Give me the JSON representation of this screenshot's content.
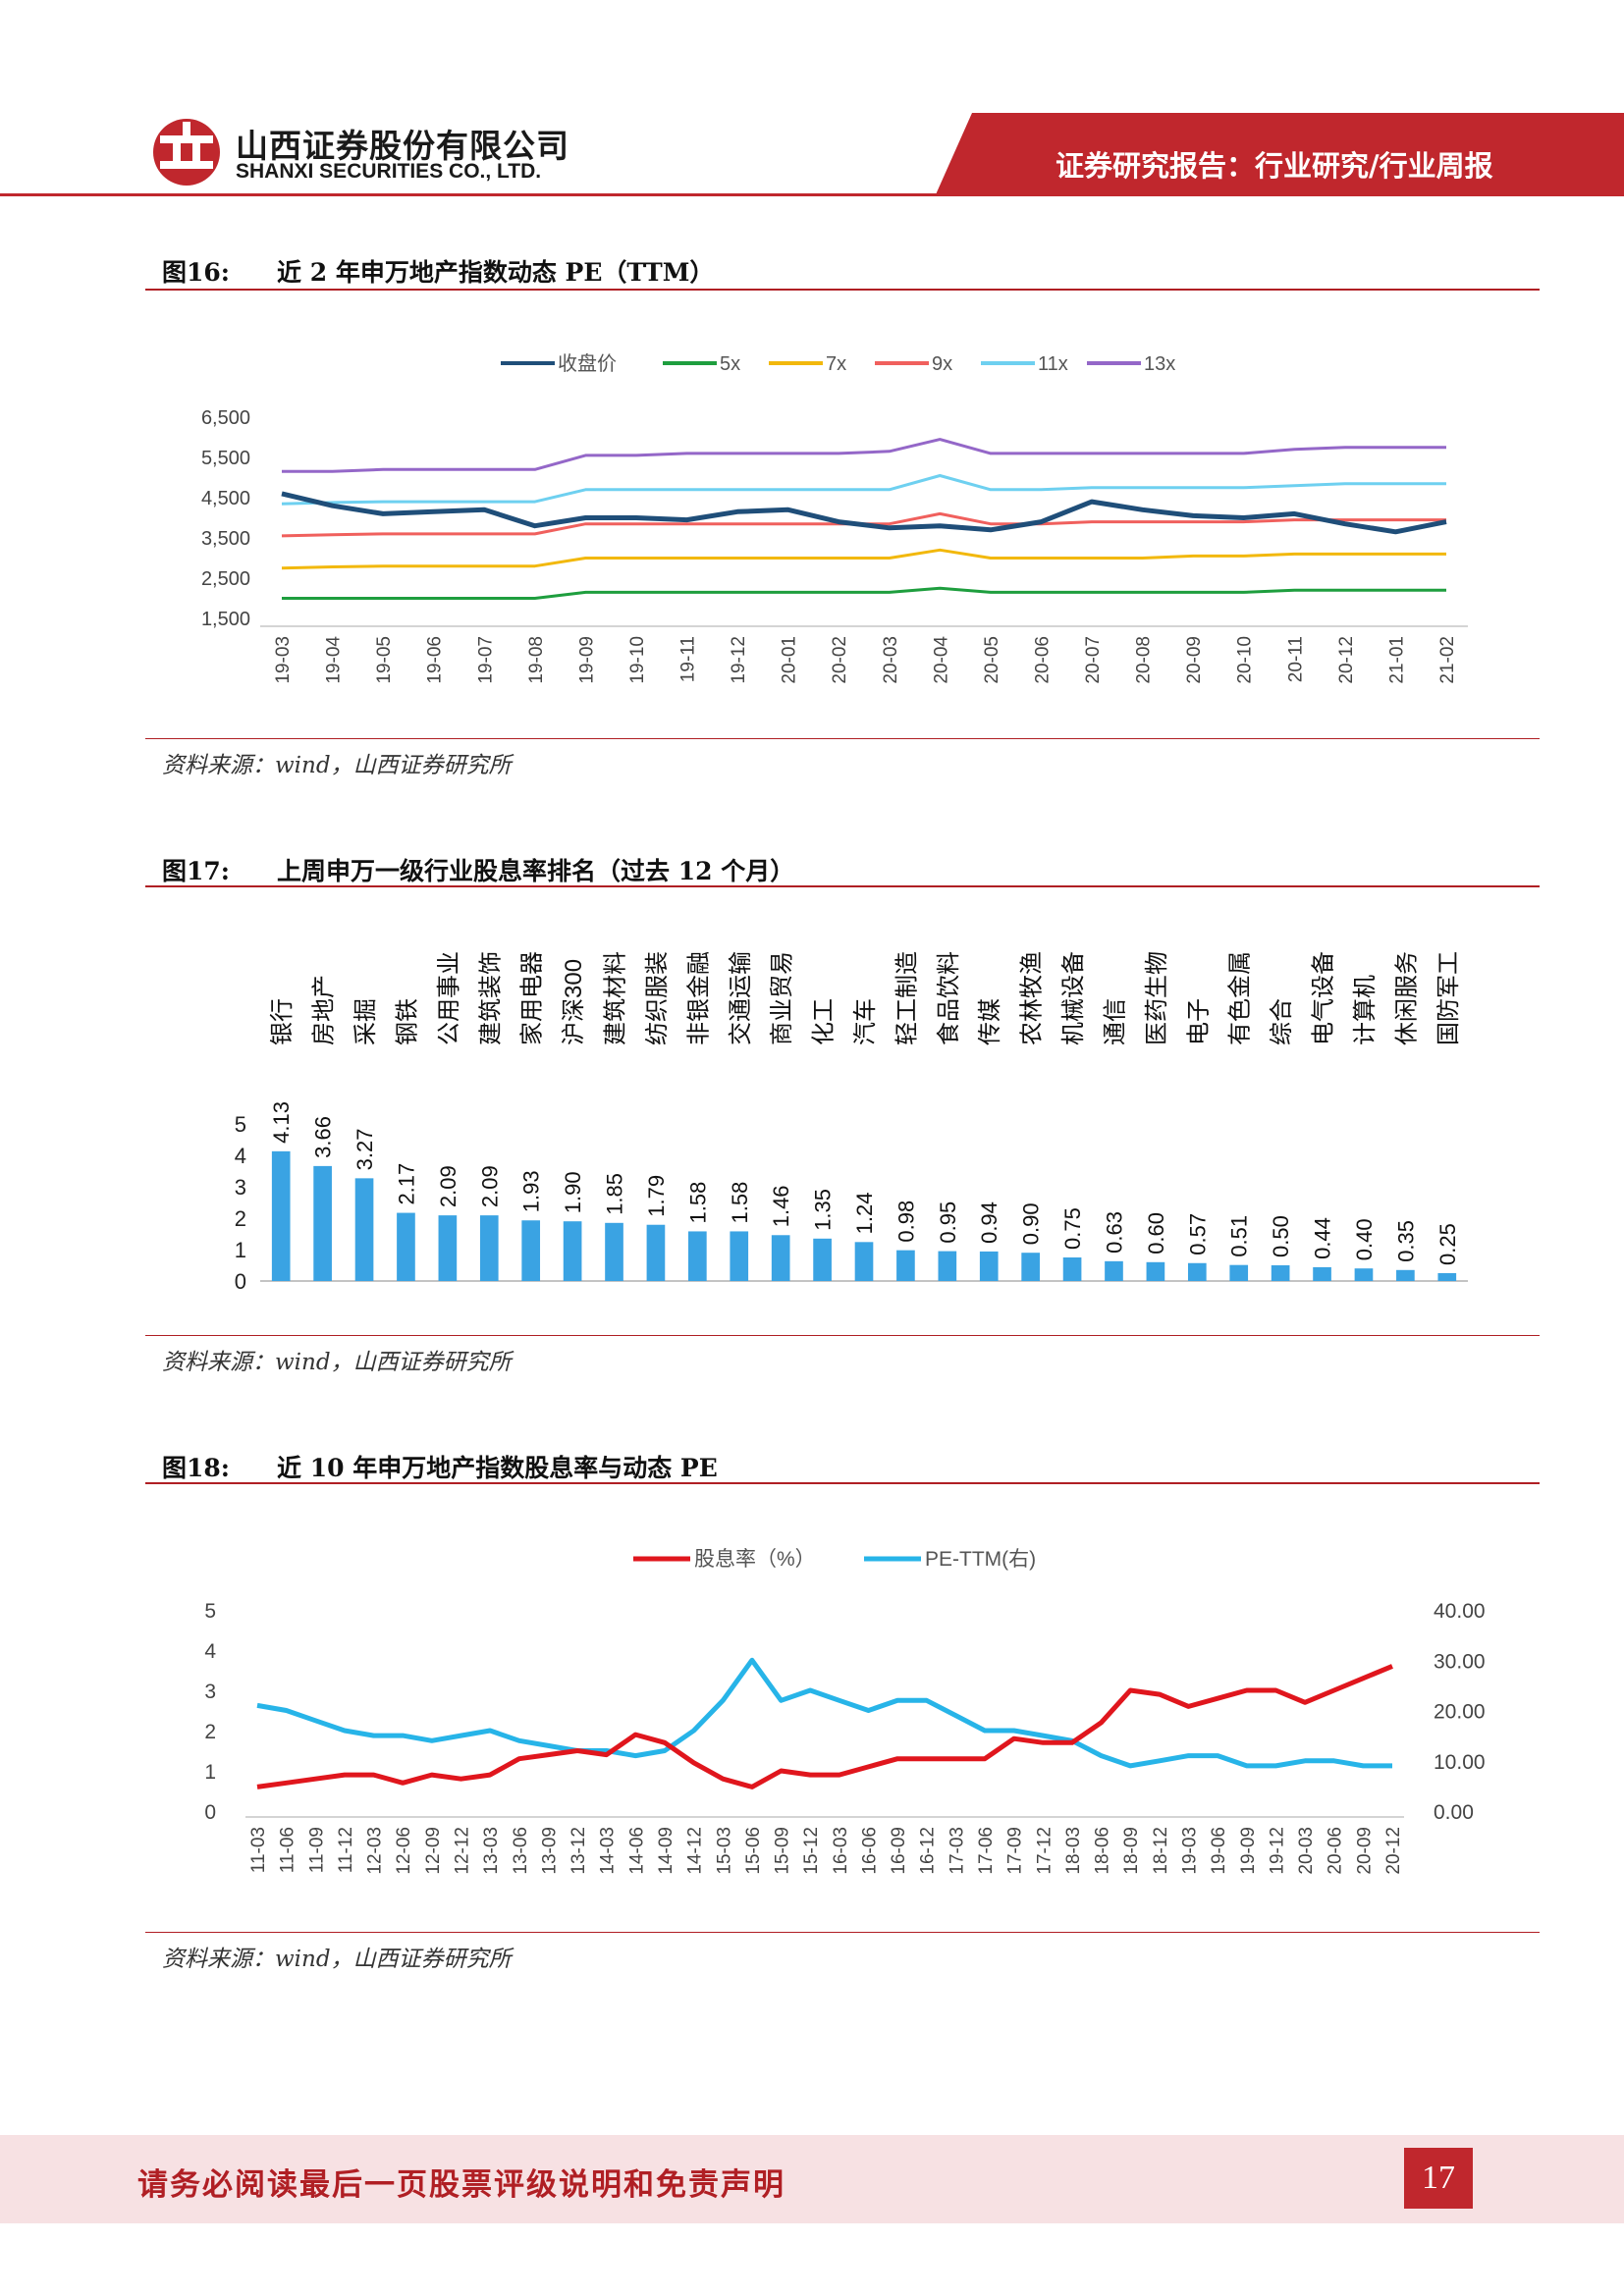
{
  "header": {
    "company_cn": "山西证券股份有限公司",
    "company_en": "SHANXI SECURITIES CO., LTD.",
    "report_type": "证券研究报告：行业研究/行业周报",
    "colors": {
      "accent": "#c0272d",
      "pink": "#f7e1e3"
    }
  },
  "figures": [
    {
      "number": "图16:",
      "title": "近 2 年申万地产指数动态 PE（TTM）",
      "source": "资料来源：wind，山西证券研究所"
    },
    {
      "number": "图17:",
      "title": "上周申万一级行业股息率排名（过去 12 个月）",
      "source": "资料来源：wind，山西证券研究所"
    },
    {
      "number": "图18:",
      "title": "近 10 年申万地产指数股息率与动态 PE",
      "source": "资料来源：wind，山西证券研究所"
    }
  ],
  "chart_data": [
    {
      "type": "line",
      "legend_position": "top",
      "x": [
        "19-03",
        "19-04",
        "19-05",
        "19-06",
        "19-07",
        "19-08",
        "19-09",
        "19-10",
        "19-11",
        "19-12",
        "20-01",
        "20-02",
        "20-03",
        "20-04",
        "20-05",
        "20-06",
        "20-07",
        "20-08",
        "20-09",
        "20-10",
        "20-11",
        "20-12",
        "21-01",
        "21-02"
      ],
      "ylim": [
        1500,
        6500
      ],
      "yticks": [
        "6,500",
        "5,500",
        "4,500",
        "3,500",
        "2,500",
        "1,500"
      ],
      "series": [
        {
          "name": "收盘价",
          "color": "#1f4e79",
          "values": [
            4600,
            4300,
            4100,
            4150,
            4200,
            3800,
            4000,
            4000,
            3950,
            4150,
            4200,
            3900,
            3750,
            3800,
            3700,
            3900,
            4400,
            4200,
            4050,
            4000,
            4100,
            3850,
            3650,
            3900
          ]
        },
        {
          "name": "5x",
          "color": "#1e9e3e",
          "values": [
            2000,
            2000,
            2000,
            2000,
            2000,
            2000,
            2150,
            2150,
            2150,
            2150,
            2150,
            2150,
            2150,
            2250,
            2150,
            2150,
            2150,
            2150,
            2150,
            2150,
            2200,
            2200,
            2200,
            2200
          ]
        },
        {
          "name": "7x",
          "color": "#f2b80c",
          "values": [
            2750,
            2780,
            2800,
            2800,
            2800,
            2800,
            3000,
            3000,
            3000,
            3000,
            3000,
            3000,
            3000,
            3200,
            3000,
            3000,
            3000,
            3000,
            3050,
            3050,
            3100,
            3100,
            3100,
            3100
          ]
        },
        {
          "name": "9x",
          "color": "#f0605d",
          "values": [
            3550,
            3580,
            3600,
            3600,
            3600,
            3600,
            3850,
            3850,
            3850,
            3850,
            3850,
            3850,
            3850,
            4100,
            3850,
            3850,
            3900,
            3900,
            3900,
            3900,
            3950,
            3950,
            3950,
            3950
          ]
        },
        {
          "name": "11x",
          "color": "#6ed0f0",
          "values": [
            4350,
            4380,
            4400,
            4400,
            4400,
            4400,
            4700,
            4700,
            4700,
            4700,
            4700,
            4700,
            4700,
            5050,
            4700,
            4700,
            4750,
            4750,
            4750,
            4750,
            4800,
            4850,
            4850,
            4850
          ]
        },
        {
          "name": "13x",
          "color": "#9467c8",
          "values": [
            5150,
            5150,
            5200,
            5200,
            5200,
            5200,
            5550,
            5550,
            5600,
            5600,
            5600,
            5600,
            5650,
            5950,
            5600,
            5600,
            5600,
            5600,
            5600,
            5600,
            5700,
            5750,
            5750,
            5750
          ]
        }
      ]
    },
    {
      "type": "bar",
      "categories": [
        "银行",
        "房地产",
        "采掘",
        "钢铁",
        "公用事业",
        "建筑装饰",
        "家用电器",
        "沪深300",
        "建筑材料",
        "纺织服装",
        "非银金融",
        "交通运输",
        "商业贸易",
        "化工",
        "汽车",
        "轻工制造",
        "食品饮料",
        "传媒",
        "农林牧渔",
        "机械设备",
        "通信",
        "医药生物",
        "电子",
        "有色金属",
        "综合",
        "电气设备",
        "计算机",
        "休闲服务",
        "国防军工"
      ],
      "values": [
        4.13,
        3.66,
        3.27,
        2.17,
        2.09,
        2.09,
        1.93,
        1.9,
        1.85,
        1.79,
        1.58,
        1.58,
        1.46,
        1.35,
        1.24,
        0.98,
        0.95,
        0.94,
        0.9,
        0.75,
        0.63,
        0.6,
        0.57,
        0.51,
        0.5,
        0.44,
        0.4,
        0.35,
        0.25
      ],
      "value_labels": [
        "4.13",
        "3.66",
        "3.27",
        "2.17",
        "2.09",
        "2.09",
        "1.93",
        "1.90",
        "1.85",
        "1.79",
        "1.58",
        "1.58",
        "1.46",
        "1.35",
        "1.24",
        "0.98",
        "0.95",
        "0.94",
        "0.90",
        "0.75",
        "0.63",
        "0.60",
        "0.57",
        "0.51",
        "0.50",
        "0.44",
        "0.40",
        "0.35",
        "0.25"
      ],
      "ylim": [
        0,
        5
      ],
      "yticks": [
        "5",
        "4",
        "3",
        "2",
        "1",
        "0"
      ],
      "bar_color": "#3aa3e3"
    },
    {
      "type": "line",
      "legend_position": "top",
      "x": [
        "11-03",
        "11-06",
        "11-09",
        "11-12",
        "12-03",
        "12-06",
        "12-09",
        "12-12",
        "13-03",
        "13-06",
        "13-09",
        "13-12",
        "14-03",
        "14-06",
        "14-09",
        "14-12",
        "15-03",
        "15-06",
        "15-09",
        "15-12",
        "16-03",
        "16-06",
        "16-09",
        "16-12",
        "17-03",
        "17-06",
        "17-09",
        "17-12",
        "18-03",
        "18-06",
        "18-09",
        "18-12",
        "19-03",
        "19-06",
        "19-09",
        "19-12",
        "20-03",
        "20-06",
        "20-09",
        "20-12"
      ],
      "ylim_left": [
        0,
        5
      ],
      "ylim_right": [
        0,
        40
      ],
      "yticks_left": [
        "5",
        "4",
        "3",
        "2",
        "1",
        "0"
      ],
      "yticks_right": [
        "40.00",
        "30.00",
        "20.00",
        "10.00",
        "0.00"
      ],
      "series": [
        {
          "name": "股息率（%）",
          "axis": "left",
          "color": "#e0161d",
          "values": [
            0.6,
            0.7,
            0.8,
            0.9,
            0.9,
            0.7,
            0.9,
            0.8,
            0.9,
            1.3,
            1.4,
            1.5,
            1.4,
            1.9,
            1.7,
            1.2,
            0.8,
            0.6,
            1.0,
            0.9,
            0.9,
            1.1,
            1.3,
            1.3,
            1.3,
            1.3,
            1.8,
            1.7,
            1.7,
            2.2,
            3.0,
            2.9,
            2.6,
            2.8,
            3.0,
            3.0,
            2.7,
            3.0,
            3.3,
            3.6
          ]
        },
        {
          "name": "PE-TTM(右)",
          "axis": "right",
          "color": "#27b4e8",
          "values": [
            21,
            20,
            18,
            16,
            15,
            15,
            14,
            15,
            16,
            14,
            13,
            12,
            12,
            11,
            12,
            16,
            22,
            30,
            22,
            24,
            22,
            20,
            22,
            22,
            19,
            16,
            16,
            15,
            14,
            11,
            9,
            10,
            11,
            11,
            9,
            9,
            10,
            10,
            9,
            9
          ]
        }
      ]
    }
  ]
}
